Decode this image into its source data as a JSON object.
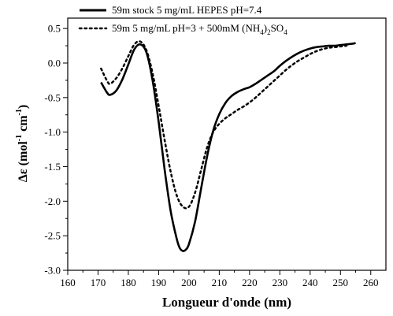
{
  "chart_data": {
    "type": "line",
    "xlabel": "Longueur d'onde (nm)",
    "ylabel": {
      "base": "Δε (mol",
      "sup1": "-1",
      "mid": " cm",
      "sup2": "-1",
      "end": ")"
    },
    "xlim": [
      160,
      265
    ],
    "ylim": [
      -3.0,
      0.65
    ],
    "xticks": [
      160,
      170,
      180,
      190,
      200,
      210,
      220,
      230,
      240,
      250,
      260
    ],
    "xtick_labels": [
      "160",
      "170",
      "180",
      "190",
      "200",
      "210",
      "220",
      "230",
      "240",
      "250",
      "260"
    ],
    "yticks": [
      0.5,
      0.0,
      -0.5,
      -1.0,
      -1.5,
      -2.0,
      -2.5,
      -3.0
    ],
    "ytick_labels": [
      "0.5",
      "0.0",
      "-0.5",
      "-1.0",
      "-1.5",
      "-2.0",
      "-2.5",
      "-3.0"
    ],
    "grid": false,
    "legend_position": "top-center",
    "series": [
      {
        "name": "59m stock 5 mg/mL HEPES pH=7.4",
        "style": "solid",
        "color": "#000000",
        "x": [
          171,
          173,
          174,
          176,
          178,
          180,
          182,
          184,
          186,
          188,
          190,
          192,
          194,
          196,
          197,
          198,
          199,
          200,
          202,
          204,
          206,
          208,
          210,
          212,
          214,
          216,
          218,
          220,
          222,
          224,
          226,
          228,
          230,
          232,
          234,
          236,
          238,
          240,
          242,
          244,
          246,
          248,
          250,
          252,
          254,
          255
        ],
        "y": [
          -0.28,
          -0.43,
          -0.46,
          -0.4,
          -0.24,
          -0.02,
          0.2,
          0.27,
          0.15,
          -0.25,
          -0.85,
          -1.55,
          -2.15,
          -2.55,
          -2.68,
          -2.72,
          -2.7,
          -2.62,
          -2.3,
          -1.82,
          -1.35,
          -0.98,
          -0.74,
          -0.58,
          -0.48,
          -0.42,
          -0.38,
          -0.35,
          -0.3,
          -0.24,
          -0.18,
          -0.12,
          -0.04,
          0.03,
          0.09,
          0.14,
          0.18,
          0.21,
          0.23,
          0.24,
          0.25,
          0.25,
          0.26,
          0.27,
          0.28,
          0.29
        ]
      },
      {
        "name": "59m 5 mg/mL pH=3 + 500mM (NH4)2SO4",
        "name_parts": {
          "pre": "59m 5 mg/mL pH=3 + 500mM (NH",
          "sub1": "4",
          "mid": ")",
          "sub2": "2",
          "post": "SO",
          "sub3": "4"
        },
        "style": "dotted",
        "color": "#000000",
        "x": [
          171,
          173,
          174,
          176,
          178,
          180,
          182,
          184,
          186,
          188,
          190,
          192,
          194,
          196,
          198,
          200,
          202,
          204,
          206,
          208,
          210,
          212,
          214,
          216,
          218,
          220,
          222,
          224,
          226,
          228,
          230,
          232,
          234,
          236,
          238,
          240,
          242,
          244,
          246,
          248,
          250,
          252
        ],
        "y": [
          -0.08,
          -0.26,
          -0.3,
          -0.22,
          -0.08,
          0.1,
          0.27,
          0.31,
          0.18,
          -0.15,
          -0.62,
          -1.12,
          -1.58,
          -1.92,
          -2.08,
          -2.08,
          -1.88,
          -1.55,
          -1.22,
          -1.0,
          -0.88,
          -0.8,
          -0.74,
          -0.68,
          -0.63,
          -0.57,
          -0.5,
          -0.42,
          -0.34,
          -0.26,
          -0.18,
          -0.1,
          -0.03,
          0.03,
          0.08,
          0.13,
          0.17,
          0.2,
          0.22,
          0.23,
          0.24,
          0.25
        ]
      }
    ]
  }
}
